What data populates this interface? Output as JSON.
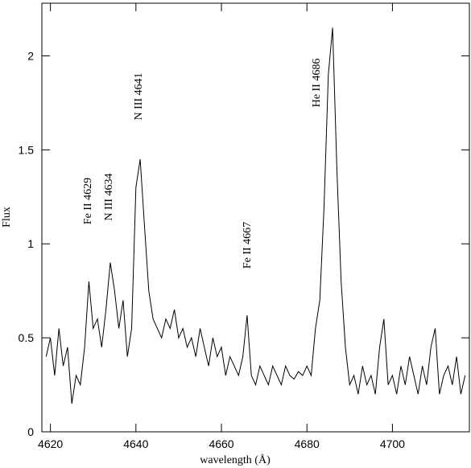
{
  "chart_data": {
    "type": "line",
    "x_label": "wavelength (Å)",
    "y_label": "Flux",
    "annotations": [
      "Fe II 4629",
      "N III 4634",
      "N III 4641",
      "Fe II 4667",
      "He II 4686"
    ],
    "x": [
      4619,
      4620,
      4621,
      4622,
      4623,
      4624,
      4625,
      4626,
      4627,
      4628,
      4629,
      4630,
      4631,
      4632,
      4633,
      4634,
      4635,
      4636,
      4637,
      4638,
      4639,
      4640,
      4641,
      4642,
      4643,
      4644,
      4645,
      4646,
      4647,
      4648,
      4649,
      4650,
      4651,
      4652,
      4653,
      4654,
      4655,
      4656,
      4657,
      4658,
      4659,
      4660,
      4661,
      4662,
      4663,
      4664,
      4665,
      4666,
      4667,
      4668,
      4669,
      4670,
      4671,
      4672,
      4673,
      4674,
      4675,
      4676,
      4677,
      4678,
      4679,
      4680,
      4681,
      4682,
      4683,
      4684,
      4685,
      4686,
      4687,
      4688,
      4689,
      4690,
      4691,
      4692,
      4693,
      4694,
      4695,
      4696,
      4697,
      4698,
      4699,
      4700,
      4701,
      4702,
      4703,
      4704,
      4705,
      4706,
      4707,
      4708,
      4709,
      4710,
      4711,
      4712,
      4713,
      4714,
      4715,
      4716,
      4717
    ],
    "series": [
      {
        "color": "#000000",
        "values": [
          0.4,
          0.5,
          0.3,
          0.55,
          0.35,
          0.45,
          0.15,
          0.3,
          0.25,
          0.45,
          0.8,
          0.55,
          0.6,
          0.45,
          0.65,
          0.9,
          0.75,
          0.55,
          0.7,
          0.4,
          0.55,
          1.3,
          1.45,
          1.1,
          0.75,
          0.6,
          0.55,
          0.5,
          0.6,
          0.55,
          0.65,
          0.5,
          0.55,
          0.45,
          0.5,
          0.4,
          0.55,
          0.45,
          0.35,
          0.5,
          0.4,
          0.45,
          0.3,
          0.4,
          0.35,
          0.3,
          0.4,
          0.62,
          0.3,
          0.25,
          0.35,
          0.3,
          0.25,
          0.35,
          0.3,
          0.25,
          0.35,
          0.3,
          0.28,
          0.32,
          0.3,
          0.35,
          0.3,
          0.55,
          0.7,
          1.2,
          1.9,
          2.15,
          1.4,
          0.8,
          0.45,
          0.25,
          0.3,
          0.2,
          0.35,
          0.25,
          0.3,
          0.2,
          0.45,
          0.6,
          0.25,
          0.3,
          0.2,
          0.35,
          0.25,
          0.4,
          0.3,
          0.2,
          0.35,
          0.25,
          0.45,
          0.55,
          0.2,
          0.3,
          0.35,
          0.25,
          0.4,
          0.2,
          0.3
        ]
      }
    ],
    "xlim": [
      4618,
      4718
    ],
    "xticks": [
      4620,
      4640,
      4660,
      4680,
      4700
    ],
    "ylim": [
      0,
      2.28
    ],
    "yticks": [
      0,
      0.5,
      1,
      1.5,
      2
    ]
  }
}
